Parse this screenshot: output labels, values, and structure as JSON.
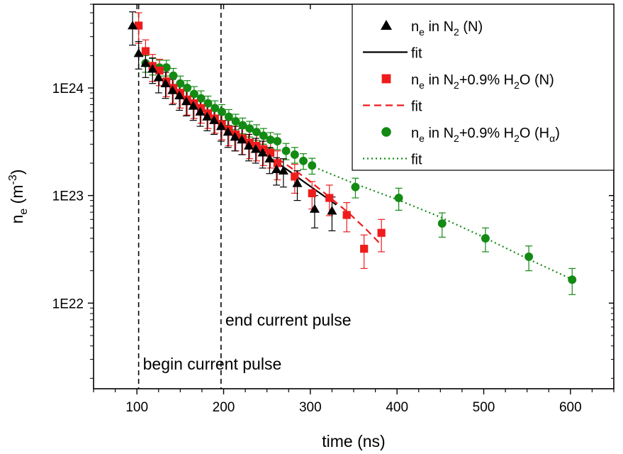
{
  "chart_data": {
    "type": "scatter",
    "title": "",
    "xlabel": "time (ns)",
    "ylabel": "n_e (m^-3)",
    "ylabel_parts": {
      "main": "n",
      "sub": "e",
      "rest": " (m",
      "sup": "-3",
      "close": ")"
    },
    "x_scale": "linear",
    "y_scale": "log",
    "xlim": [
      50,
      650
    ],
    "ylim": [
      1.6e+21,
      6e+24
    ],
    "x_ticks": [
      100,
      200,
      300,
      400,
      500,
      600
    ],
    "x_tick_labels": [
      "100",
      "200",
      "300",
      "400",
      "500",
      "600"
    ],
    "y_ticks": [
      1e+22,
      1e+23,
      1e+24
    ],
    "y_tick_labels": [
      "1E22",
      "1E23",
      "1E24"
    ],
    "grid": false,
    "legend_position": "top-right",
    "annotations": [
      {
        "text": "begin current pulse",
        "x": 102
      },
      {
        "text": "end current pulse",
        "x": 197
      }
    ],
    "series": [
      {
        "name": "n_e in N2 (N)",
        "legend": {
          "a": "n",
          "b": "e",
          "c": " in N",
          "d": "2",
          "e": " (N)"
        },
        "marker": "triangle",
        "color": "#000000",
        "x": [
          95,
          102,
          110,
          118,
          125,
          133,
          141,
          149,
          157,
          165,
          173,
          181,
          189,
          197,
          205,
          213,
          221,
          229,
          237,
          245,
          253,
          261,
          269,
          285,
          305,
          325
        ],
        "y": [
          3.8e+24,
          2.1e+24,
          1.7e+24,
          1.5e+24,
          1.25e+24,
          1.1e+24,
          9.5e+23,
          8.5e+23,
          7.5e+23,
          6.8e+23,
          6e+23,
          5.4e+23,
          5e+23,
          4.4e+23,
          3.9e+23,
          3.5e+23,
          3.3e+23,
          2.9e+23,
          2.7e+23,
          2.5e+23,
          2.2e+23,
          1.75e+23,
          1.7e+23,
          1.3e+23,
          7.5e+22,
          7.2e+22
        ],
        "err_up": [
          1.3e+24,
          6e+23,
          4.5e+23,
          4e+23,
          3.5e+23,
          3e+23,
          2.5e+23,
          2.3e+23,
          2e+23,
          1.8e+23,
          1.6e+23,
          1.4e+23,
          1.3e+23,
          1.2e+23,
          1.1e+23,
          9e+22,
          9e+22,
          8e+22,
          7e+22,
          7e+22,
          6e+22,
          5e+22,
          5e+22,
          4e+22,
          2.5e+22,
          2.5e+22
        ],
        "err_down": [
          1.3e+24,
          6e+23,
          4.5e+23,
          4e+23,
          3.5e+23,
          3e+23,
          2.5e+23,
          2.3e+23,
          2e+23,
          1.8e+23,
          1.6e+23,
          1.4e+23,
          1.3e+23,
          1.2e+23,
          1.1e+23,
          9e+22,
          9e+22,
          8e+22,
          7e+22,
          7e+22,
          6e+22,
          5e+22,
          5e+22,
          4e+22,
          2.5e+22,
          2.5e+22
        ]
      },
      {
        "name": "fit",
        "legend": {
          "a": "fit"
        },
        "line": "solid",
        "color": "#000000",
        "x": [
          195,
          215,
          235,
          255,
          275,
          295,
          315,
          330
        ],
        "y": [
          4.7e+23,
          3.7e+23,
          2.9e+23,
          2.2e+23,
          1.7e+23,
          1.3e+23,
          1e+23,
          8.2e+22
        ]
      },
      {
        "name": "n_e in N2+0.9% H2O (N)",
        "legend": {
          "a": "n",
          "b": "e",
          "c": " in N",
          "d": "2",
          "e": "+0.9% H",
          "f": "2",
          "g": "O (N)"
        },
        "marker": "square",
        "color": "#ee1c1c",
        "x": [
          102,
          110,
          118,
          126,
          134,
          142,
          150,
          158,
          166,
          174,
          182,
          190,
          198,
          206,
          214,
          222,
          230,
          238,
          246,
          254,
          262,
          282,
          302,
          322,
          342,
          362,
          382
        ],
        "y": [
          3.8e+24,
          2.2e+24,
          1.6e+24,
          1.45e+24,
          1.15e+24,
          1e+24,
          9e+23,
          7.8e+23,
          7.2e+23,
          6.5e+23,
          5.8e+23,
          5.2e+23,
          4.6e+23,
          4.1e+23,
          3.7e+23,
          3.4e+23,
          3.1e+23,
          2.9e+23,
          2.7e+23,
          2.5e+23,
          2e+23,
          1.5e+23,
          1.05e+23,
          9.5e+22,
          6.6e+22,
          3.2e+22,
          4.5e+22
        ],
        "err_up": [
          1.2e+24,
          6e+23,
          4.5e+23,
          4e+23,
          3.2e+23,
          2.8e+23,
          2.5e+23,
          2.2e+23,
          2e+23,
          1.8e+23,
          1.6e+23,
          1.4e+23,
          1.3e+23,
          1.2e+23,
          1.1e+23,
          1e+23,
          9e+22,
          8e+22,
          8e+22,
          7e+22,
          6e+22,
          4.5e+22,
          3e+22,
          3e+22,
          2e+22,
          1.1e+22,
          1.5e+22
        ],
        "err_down": [
          1.2e+24,
          6e+23,
          4.5e+23,
          4e+23,
          3.2e+23,
          2.8e+23,
          2.5e+23,
          2.2e+23,
          2e+23,
          1.8e+23,
          1.6e+23,
          1.4e+23,
          1.3e+23,
          1.2e+23,
          1.1e+23,
          1e+23,
          9e+22,
          8e+22,
          8e+22,
          7e+22,
          6e+22,
          4.5e+22,
          3e+22,
          3e+22,
          2e+22,
          1.1e+22,
          1.5e+22
        ]
      },
      {
        "name": "fit",
        "legend": {
          "a": "fit"
        },
        "line": "dashed",
        "color": "#ee1c1c",
        "x": [
          195,
          220,
          245,
          270,
          295,
          320,
          345,
          365,
          380
        ],
        "y": [
          4.7e+23,
          3.6e+23,
          2.7e+23,
          2e+23,
          1.45e+23,
          1e+23,
          6.8e+22,
          4.8e+22,
          3.6e+22
        ]
      },
      {
        "name": "n_e in N2+0.9% H2O (H_alpha)",
        "legend": {
          "a": "n",
          "b": "e",
          "c": " in N",
          "d": "2",
          "e": "+0.9% H",
          "f": "2",
          "g": "O (H",
          "h": "α",
          "i": ")"
        },
        "marker": "circle",
        "color": "#138a13",
        "x": [
          110,
          118,
          126,
          134,
          142,
          150,
          158,
          166,
          174,
          182,
          190,
          198,
          206,
          214,
          222,
          230,
          238,
          246,
          254,
          262,
          272,
          282,
          292,
          302,
          352,
          402,
          452,
          502,
          552,
          602
        ],
        "y": [
          1.7e+24,
          1.6e+24,
          1.55e+24,
          1.55e+24,
          1.3e+24,
          1.1e+24,
          1e+24,
          8.8e+23,
          8e+23,
          7.2e+23,
          6.5e+23,
          6e+23,
          5.4e+23,
          4.9e+23,
          4.5e+23,
          4.2e+23,
          3.9e+23,
          3.6e+23,
          3.3e+23,
          3.2e+23,
          2.6e+23,
          2.4e+23,
          2.1e+23,
          1.9e+23,
          1.2e+23,
          9.5e+22,
          5.5e+22,
          4e+22,
          2.7e+22,
          1.65e+22
        ],
        "err_up": [
          3e+23,
          2.8e+23,
          2.6e+23,
          2.6e+23,
          2.2e+23,
          1.9e+23,
          1.7e+23,
          1.5e+23,
          1.4e+23,
          1.2e+23,
          1.1e+23,
          1e+23,
          9e+22,
          8e+22,
          7.5e+22,
          7e+22,
          6.5e+22,
          6e+22,
          5.5e+22,
          5.3e+22,
          4.5e+22,
          4e+22,
          3.5e+22,
          3.2e+22,
          2.5e+22,
          2.2e+22,
          1.4e+22,
          1e+22,
          7e+21,
          4.5e+21
        ],
        "err_down": [
          3e+23,
          2.8e+23,
          2.6e+23,
          2.6e+23,
          2.2e+23,
          1.9e+23,
          1.7e+23,
          1.5e+23,
          1.4e+23,
          1.2e+23,
          1.1e+23,
          1e+23,
          9e+22,
          8e+22,
          7.5e+22,
          7e+22,
          6.5e+22,
          6e+22,
          5.5e+22,
          5.3e+22,
          4.5e+22,
          4e+22,
          3.5e+22,
          3.2e+22,
          2.5e+22,
          2.2e+22,
          1.4e+22,
          1e+22,
          7e+21,
          4.5e+21
        ]
      },
      {
        "name": "fit",
        "legend": {
          "a": "fit"
        },
        "line": "dotted",
        "color": "#138a13",
        "x": [
          300,
          350,
          400,
          450,
          500,
          550,
          605
        ],
        "y": [
          1.9e+23,
          1.3e+23,
          9.2e+22,
          6.3e+22,
          4.1e+22,
          2.6e+22,
          1.62e+22
        ]
      }
    ]
  }
}
